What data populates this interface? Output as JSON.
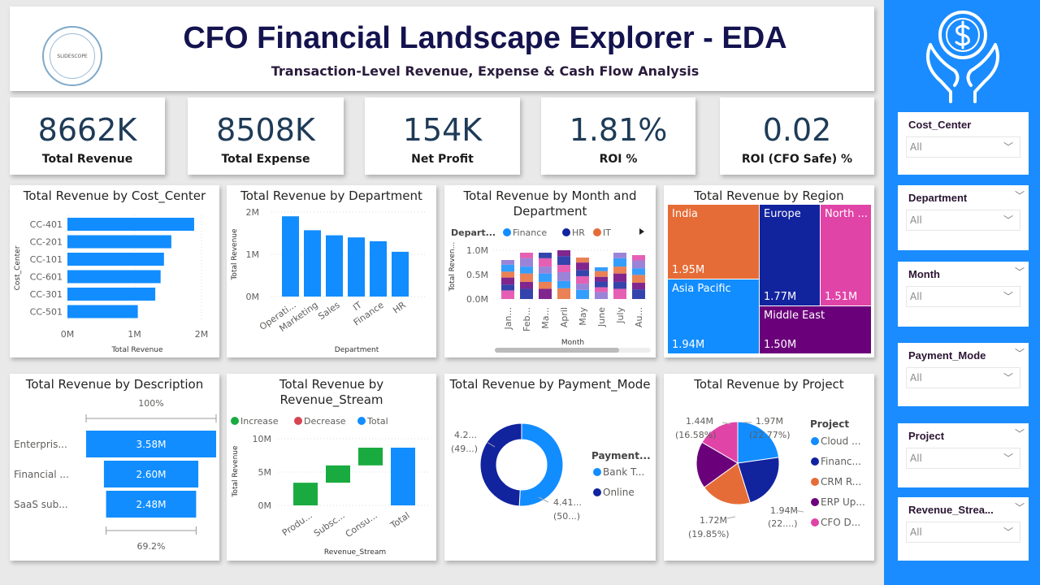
{
  "header": {
    "title": "CFO Financial Landscape Explorer - EDA",
    "subtitle": "Transaction-Level Revenue, Expense & Cash Flow Analysis",
    "logo_text": "SLIDESCOPE · EDUCATIONAL INSTITUTION · INDUSTRIAL TRAINING"
  },
  "kpis": [
    {
      "value": "8662K",
      "label": "Total Revenue"
    },
    {
      "value": "8508K",
      "label": "Total Expense"
    },
    {
      "value": "154K",
      "label": "Net Profit"
    },
    {
      "value": "1.81%",
      "label": "ROI %"
    },
    {
      "value": "0.02",
      "label": "ROI (CFO Safe) %"
    }
  ],
  "colors": {
    "blue": "#118DFF",
    "navy": "#12239E",
    "orange": "#E66C37",
    "purple": "#6B007B",
    "pink": "#E044A7",
    "green": "#1AAB40",
    "red": "#D64550",
    "sidebar": "#1A8CFF"
  },
  "slicers": [
    {
      "label": "Cost_Center",
      "value": "All"
    },
    {
      "label": "Department",
      "value": "All"
    },
    {
      "label": "Month",
      "value": "All"
    },
    {
      "label": "Payment_Mode",
      "value": "All"
    },
    {
      "label": "Project",
      "value": "All"
    },
    {
      "label": "Revenue_Strea...",
      "value": "All"
    }
  ],
  "sidebar_icon": "hands-holding-dollar-coin-icon",
  "chart_data": [
    {
      "id": "cost_center",
      "type": "bar",
      "orientation": "horizontal",
      "title": "Total Revenue by Cost_Center",
      "xlabel": "Total Revenue",
      "ylabel": "Cost_Center",
      "categories": [
        "CC-401",
        "CC-201",
        "CC-101",
        "CC-601",
        "CC-301",
        "CC-501"
      ],
      "values": [
        1.89,
        1.55,
        1.44,
        1.39,
        1.31,
        1.05
      ],
      "unit": "M",
      "xlim": [
        0,
        2
      ],
      "ticks": [
        "0M",
        "1M",
        "2M"
      ],
      "grid": true
    },
    {
      "id": "department",
      "type": "bar",
      "title": "Total Revenue by Department",
      "xlabel": "Department",
      "ylabel": "Total Revenue",
      "categories": [
        "Operati...",
        "Marketing",
        "Sales",
        "IT",
        "Finance",
        "HR"
      ],
      "values": [
        1.9,
        1.57,
        1.45,
        1.4,
        1.31,
        1.06
      ],
      "unit": "M",
      "ylim": [
        0,
        2
      ],
      "ticks": [
        "0M",
        "1M",
        "2M"
      ],
      "grid": true
    },
    {
      "id": "month_dept",
      "type": "area",
      "subtype": "ribbon",
      "title": "Total Revenue by Month and Department",
      "xlabel": "Month",
      "ylabel": "Total Reven...",
      "legend_title": "Depart...",
      "legend": [
        "Finance",
        "HR",
        "IT"
      ],
      "categories": [
        "Jan...",
        "Feb...",
        "Ma...",
        "April",
        "May",
        "June",
        "July",
        "Au..."
      ],
      "values": [
        0.8,
        0.95,
        0.95,
        1.0,
        0.85,
        0.65,
        0.95,
        0.9
      ],
      "ylim": [
        0,
        1
      ],
      "ticks": [
        "0.0M",
        "0.5M",
        "1.0M"
      ],
      "grid": true
    },
    {
      "id": "region",
      "type": "treemap",
      "title": "Total Revenue by Region",
      "categories": [
        "India",
        "Asia Pacific",
        "Europe",
        "North ...",
        "Middle East"
      ],
      "labels": [
        "1.95M",
        "1.94M",
        "1.77M",
        "1.51M",
        "1.50M"
      ],
      "values": [
        1.95,
        1.94,
        1.77,
        1.51,
        1.5
      ]
    },
    {
      "id": "description",
      "type": "funnel",
      "title": "Total Revenue by Description",
      "categories": [
        "Enterpris...",
        "Financial ...",
        "SaaS sub..."
      ],
      "values": [
        3.58,
        2.6,
        2.48
      ],
      "labels": [
        "3.58M",
        "2.60M",
        "2.48M"
      ],
      "top_pct": "100%",
      "bottom_pct": "69.2%"
    },
    {
      "id": "revenue_stream",
      "type": "bar",
      "subtype": "waterfall",
      "title": "Total Revenue by Revenue_Stream",
      "xlabel": "Revenue_Stream",
      "ylabel": "Total Revenue",
      "legend": [
        "Increase",
        "Decrease",
        "Total"
      ],
      "categories": [
        "Produ...",
        "Subsc...",
        "Consu...",
        "Total"
      ],
      "values": [
        3.4,
        2.6,
        2.66,
        8.66
      ],
      "ylim": [
        0,
        10
      ],
      "ticks": [
        "0M",
        "5M",
        "10M"
      ],
      "grid": true
    },
    {
      "id": "payment_mode",
      "type": "pie",
      "subtype": "donut",
      "title": "Total Revenue by Payment_Mode",
      "legend_title": "Payment...",
      "categories": [
        "Bank T...",
        "Online"
      ],
      "values": [
        50.9,
        49.1
      ],
      "labels": [
        [
          "4.41...",
          "(50...)"
        ],
        [
          "4.2...",
          "(49...)"
        ]
      ]
    },
    {
      "id": "project",
      "type": "pie",
      "title": "Total Revenue by Project",
      "legend_title": "Project",
      "categories": [
        "Cloud ...",
        "Financ...",
        "CRM R...",
        "ERP Up...",
        "CFO D..."
      ],
      "values": [
        22.77,
        22.4,
        19.85,
        18.4,
        16.58
      ],
      "labels": [
        [
          "1.97M",
          "(22.77%)"
        ],
        [
          "1.94M",
          "(22....)"
        ],
        [
          "1.72M",
          "(19.85%)"
        ],
        null,
        [
          "1.44M",
          "(16.58%)"
        ]
      ]
    }
  ]
}
